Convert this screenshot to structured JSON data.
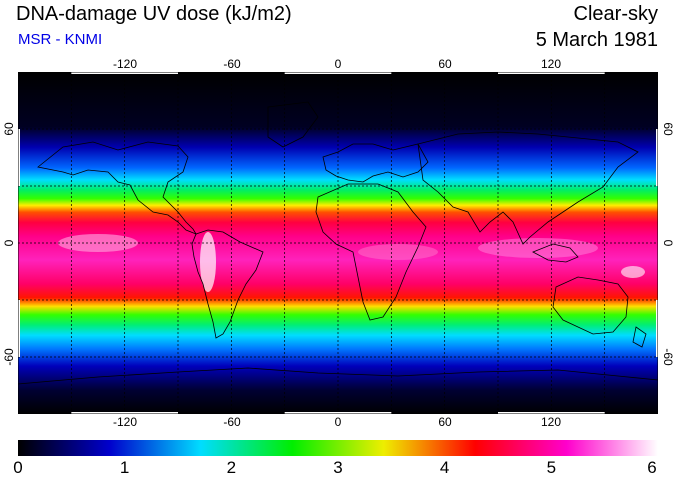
{
  "title": "DNA-damage UV dose (kJ/m2)",
  "subtitle": "MSR - KNMI",
  "condition": "Clear-sky",
  "date": "5 March 1981",
  "longitude_labels_top": [
    "-120",
    "-60",
    "0",
    "60",
    "120"
  ],
  "longitude_labels_bottom": [
    "-120",
    "-60",
    "0",
    "60",
    "120"
  ],
  "latitude_labels_left": [
    "60",
    "0",
    "-60"
  ],
  "latitude_labels_right": [
    "60",
    "0",
    "-60"
  ],
  "map": {
    "projection": "equirectangular",
    "lon_range": [
      -180,
      180
    ],
    "lat_range": [
      -90,
      90
    ],
    "grid_lons": [
      -150,
      -120,
      -90,
      -60,
      -30,
      0,
      30,
      60,
      90,
      120,
      150
    ],
    "grid_lats": [
      -60,
      -30,
      0,
      30,
      60
    ],
    "grid": "dashed",
    "coastlines": true
  },
  "colorbar": {
    "min": 0,
    "max": 6,
    "tick_labels": [
      "0",
      "1",
      "2",
      "3",
      "4",
      "5",
      "6"
    ],
    "colors": [
      "#000000",
      "#0000cc",
      "#00ddff",
      "#00ee00",
      "#eeee00",
      "#ff0000",
      "#ff00cc",
      "#ffffff"
    ]
  }
}
